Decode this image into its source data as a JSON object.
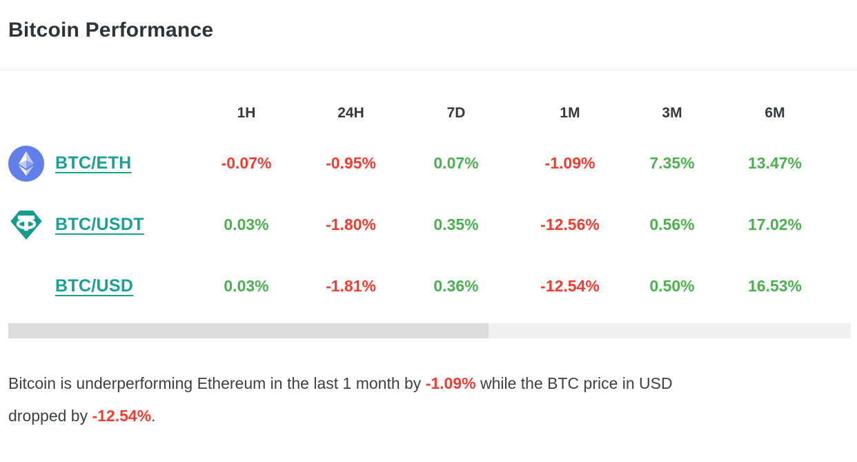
{
  "page": {
    "title": "Bitcoin Performance"
  },
  "colors": {
    "positive_green": "#4caf50",
    "negative_red": "#f03c31",
    "link_teal": "#18a094",
    "eth_blue": "#627eea",
    "tether_teal": "#169b8f",
    "flag_navy": "#3c3b6e",
    "flag_red": "#b22234",
    "divider_gray": "#e8e8e8",
    "scroll_track": "#f0f0f0",
    "scroll_thumb": "#dcdcdc"
  },
  "table": {
    "columns": [
      "1H",
      "24H",
      "7D",
      "1M",
      "3M",
      "6M"
    ],
    "rows": [
      {
        "pair": "BTC/ETH",
        "icon": "ethereum-icon",
        "values": [
          "-0.07%",
          "-0.95%",
          "0.07%",
          "-1.09%",
          "7.35%",
          "13.47%"
        ]
      },
      {
        "pair": "BTC/USDT",
        "icon": "tether-icon",
        "values": [
          "0.03%",
          "-1.80%",
          "0.35%",
          "-12.56%",
          "0.56%",
          "17.02%"
        ]
      },
      {
        "pair": "BTC/USD",
        "icon": "us-flag-icon",
        "values": [
          "0.03%",
          "-1.81%",
          "0.36%",
          "-12.54%",
          "0.50%",
          "16.53%"
        ]
      }
    ]
  },
  "summary": {
    "segments": [
      {
        "text": "Bitcoin is underperforming Ethereum in the last 1 month by ",
        "style": "normal"
      },
      {
        "text": "-1.09%",
        "style": "negative-bold"
      },
      {
        "text": " while the BTC price in USD",
        "style": "normal",
        "break_after": true
      },
      {
        "text": "dropped by ",
        "style": "normal"
      },
      {
        "text": "-12.54%",
        "style": "negative-bold"
      },
      {
        "text": ".",
        "style": "normal"
      }
    ]
  }
}
